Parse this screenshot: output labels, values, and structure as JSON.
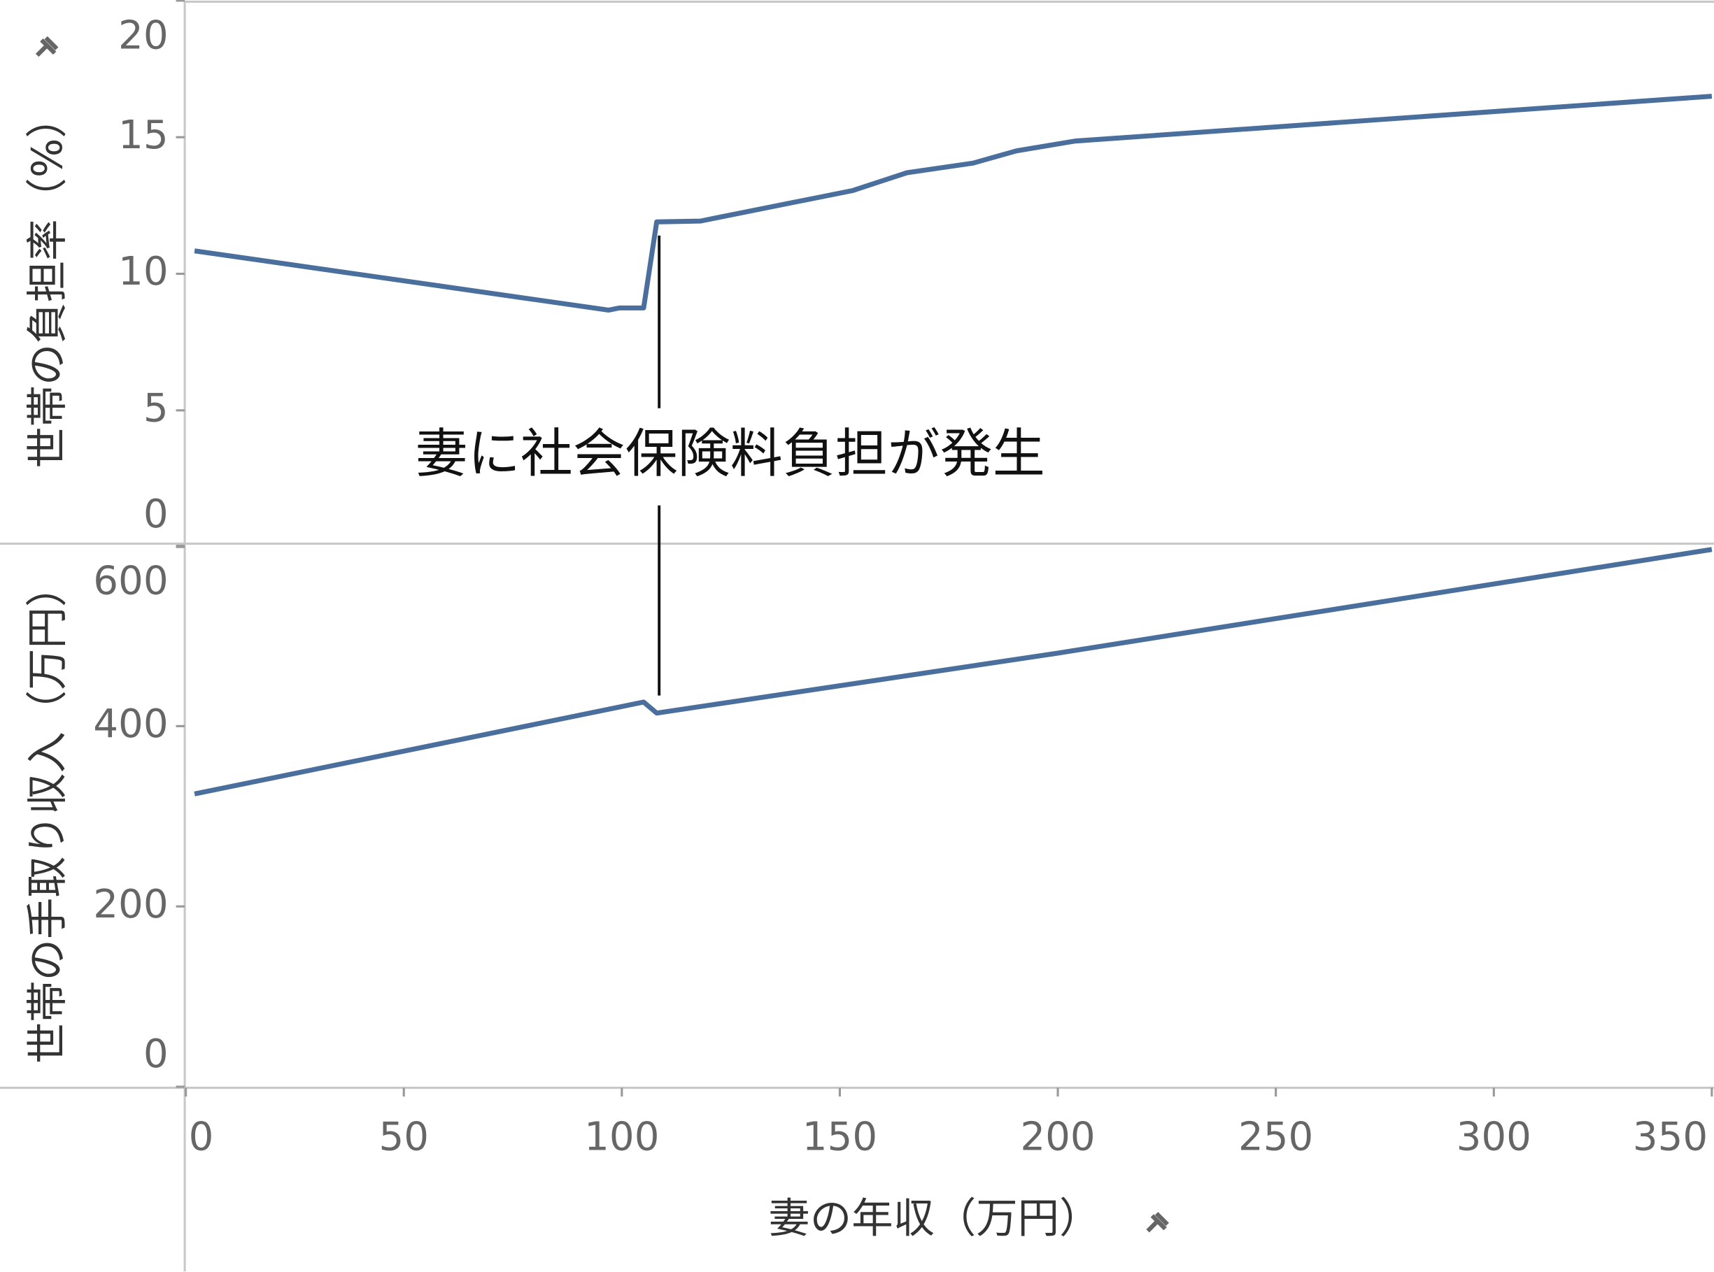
{
  "chart_data": [
    {
      "type": "line",
      "ylabel": "世帯の負担率（%）",
      "ylim": [
        0,
        20
      ],
      "yticks": [
        0,
        5,
        10,
        15,
        20
      ],
      "annotation": "妻に社会保険料負担が発生",
      "x": [
        2,
        97,
        99.5,
        105,
        108,
        118,
        153,
        165.4,
        180.5,
        190.5,
        204,
        350
      ],
      "series": [
        {
          "color": "#4a6f9c",
          "values": [
            10.84,
            8.67,
            8.75,
            8.75,
            11.9,
            11.93,
            13.05,
            13.7,
            14.05,
            14.5,
            14.86,
            16.5
          ]
        }
      ]
    },
    {
      "type": "line",
      "ylabel": "世帯の手取り収入（万円）",
      "ylim": [
        0,
        600
      ],
      "yticks": [
        0,
        200,
        400,
        600
      ],
      "xlabel": "妻の年収（万円）",
      "xlim": [
        0,
        350
      ],
      "xticks": [
        0,
        50,
        100,
        150,
        200,
        250,
        300,
        350
      ],
      "x": [
        2,
        105,
        108,
        200,
        350
      ],
      "series": [
        {
          "color": "#4a6f9c",
          "values": [
            324.8,
            426.7,
            414.5,
            481,
            596
          ]
        }
      ]
    }
  ]
}
